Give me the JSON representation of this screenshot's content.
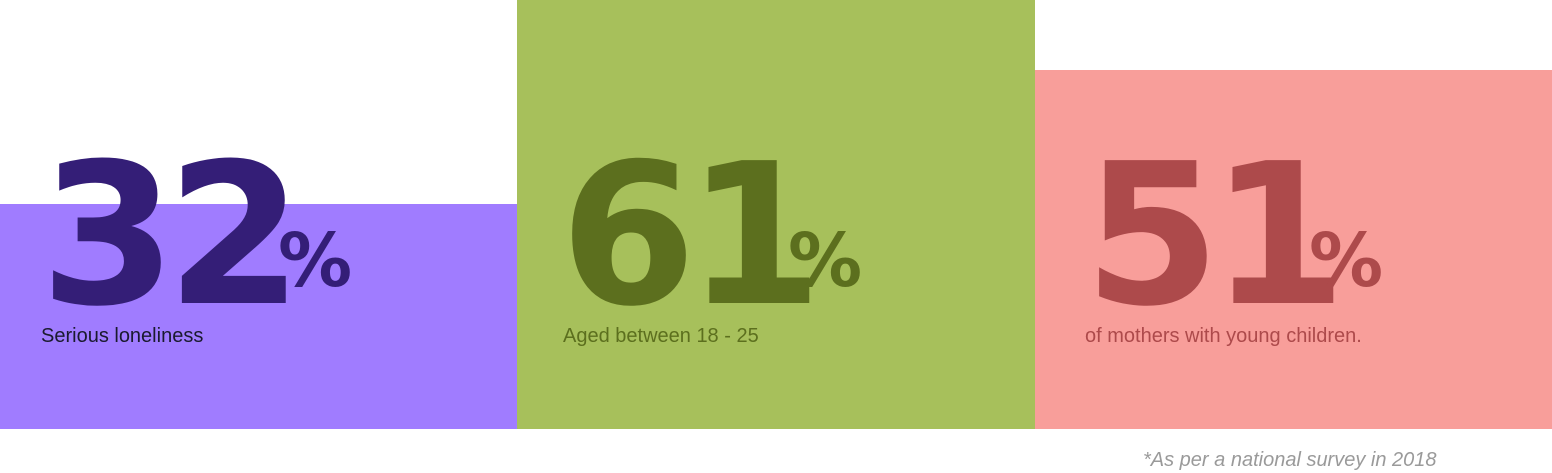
{
  "chart_data": {
    "type": "bar",
    "categories": [
      "Serious loneliness",
      "Aged between 18 - 25",
      "of mothers with young children."
    ],
    "values": [
      32,
      61,
      51
    ],
    "value_labels": [
      "32",
      "61",
      "51"
    ],
    "unit": "%",
    "ylim": [
      0,
      61
    ],
    "grid": false,
    "legend": "none",
    "colors": {
      "bars": [
        "#a07cff",
        "#a7c05b",
        "#f89e9a"
      ],
      "numbers": [
        "#341e77",
        "#5c6f1e",
        "#ad4a4b"
      ],
      "labels": [
        "#1a1a2e",
        "#5c6f1e",
        "#ad4a4b"
      ]
    }
  },
  "footnote": "*As per a national survey in 2018"
}
